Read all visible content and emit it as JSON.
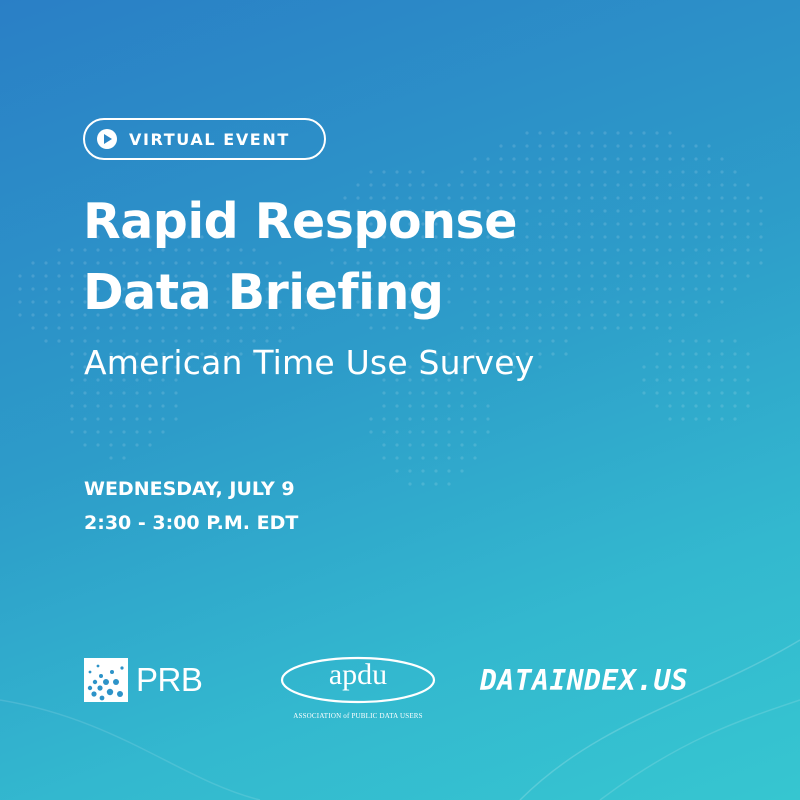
{
  "event": {
    "badge_label": "VIRTUAL EVENT",
    "title_line1": "Rapid Response",
    "title_line2": "Data Briefing",
    "subtitle": "American Time Use Survey",
    "date": "WEDNESDAY, JULY 9",
    "time": "2:30 - 3:00 P.M. EDT"
  },
  "logos": {
    "prb": "PRB",
    "apdu_wordmark": "apdu",
    "apdu_tagline": "ASSOCIATION of PUBLIC DATA USERS",
    "dataindex": "DATAINDEX.US"
  },
  "colors": {
    "gradient_start": "#2a7fc6",
    "gradient_end": "#36c6d0",
    "text": "#ffffff"
  },
  "icons": {
    "badge_icon": "play-circle-icon",
    "background": "dotted-world-map"
  }
}
